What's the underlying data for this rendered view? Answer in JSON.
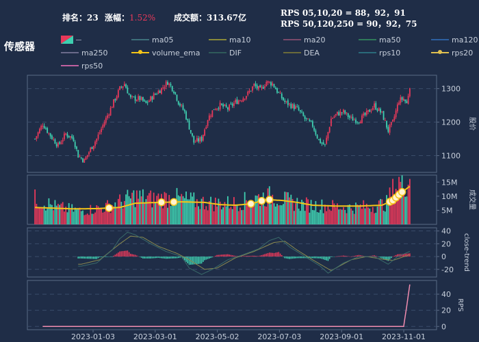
{
  "header": {
    "rank_label": "排名：",
    "rank_value": "23",
    "change_label": "涨幅：",
    "change_value": "1.52%",
    "amount_label": "成交额：",
    "amount_value": "313.67亿",
    "rps_line1": "RPS 05,10,20 = 88，92，91",
    "rps_line2": "RPS 50,120,250 = 90，92，75"
  },
  "title": "传感器",
  "legend": [
    {
      "name": "ma05",
      "color": "#3e6f7a"
    },
    {
      "name": "ma10",
      "color": "#8a8a3a"
    },
    {
      "name": "ma20",
      "color": "#7a4a6a"
    },
    {
      "name": "ma50",
      "color": "#2f7a5a"
    },
    {
      "name": "ma120",
      "color": "#2d5fa0"
    },
    {
      "name": "ma250",
      "color": "#6a6a8a"
    },
    {
      "name": "volume_ema",
      "color": "#f5c518"
    },
    {
      "name": "DIF",
      "color": "#2f5a5a"
    },
    {
      "name": "DEA",
      "color": "#6a6a3a"
    },
    {
      "name": "rps10",
      "color": "#2a6a7a"
    },
    {
      "name": "rps20",
      "color": "#e0c050"
    },
    {
      "name": "rps50",
      "color": "#c060a0"
    }
  ],
  "colors": {
    "up": "#e8395a",
    "down": "#3fcfb0",
    "ema": "#f5c518",
    "rps": "#f28db0",
    "grid": "#3a4c6a",
    "panel_border": "#5a6a84"
  },
  "chart_data": {
    "type": "candlestick",
    "x_tick_labels": [
      "2023-01-03",
      "2023-03-01",
      "2023-05-02",
      "2023-07-03",
      "2023-09-01",
      "2023-11-01"
    ],
    "price": {
      "ylabel": "股价",
      "yticks": [
        1100,
        1200,
        1300
      ],
      "ylim": [
        1050,
        1340
      ],
      "keypoints": [
        [
          0,
          1150
        ],
        [
          5,
          1195
        ],
        [
          10,
          1160
        ],
        [
          15,
          1130
        ],
        [
          20,
          1165
        ],
        [
          25,
          1150
        ],
        [
          28,
          1100
        ],
        [
          32,
          1085
        ],
        [
          36,
          1120
        ],
        [
          40,
          1150
        ],
        [
          45,
          1200
        ],
        [
          50,
          1250
        ],
        [
          55,
          1300
        ],
        [
          58,
          1315
        ],
        [
          62,
          1270
        ],
        [
          68,
          1270
        ],
        [
          72,
          1255
        ],
        [
          77,
          1280
        ],
        [
          82,
          1300
        ],
        [
          86,
          1320
        ],
        [
          90,
          1295
        ],
        [
          93,
          1260
        ],
        [
          97,
          1230
        ],
        [
          100,
          1185
        ],
        [
          103,
          1140
        ],
        [
          108,
          1150
        ],
        [
          112,
          1210
        ],
        [
          116,
          1240
        ],
        [
          120,
          1250
        ],
        [
          125,
          1240
        ],
        [
          130,
          1260
        ],
        [
          134,
          1270
        ],
        [
          138,
          1285
        ],
        [
          142,
          1310
        ],
        [
          146,
          1295
        ],
        [
          150,
          1320
        ],
        [
          154,
          1315
        ],
        [
          158,
          1285
        ],
        [
          162,
          1260
        ],
        [
          166,
          1250
        ],
        [
          170,
          1240
        ],
        [
          175,
          1210
        ],
        [
          180,
          1190
        ],
        [
          184,
          1145
        ],
        [
          188,
          1130
        ],
        [
          192,
          1210
        ],
        [
          196,
          1225
        ],
        [
          200,
          1230
        ],
        [
          205,
          1210
        ],
        [
          210,
          1205
        ],
        [
          215,
          1225
        ],
        [
          220,
          1250
        ],
        [
          225,
          1225
        ],
        [
          229,
          1175
        ],
        [
          232,
          1200
        ],
        [
          236,
          1265
        ],
        [
          239,
          1270
        ],
        [
          241,
          1255
        ],
        [
          243,
          1310
        ]
      ]
    },
    "volume": {
      "ylabel": "成交量",
      "yticks": [
        "5M",
        "10M",
        "15M"
      ],
      "ylim_M": [
        0,
        17.5
      ],
      "ema_keypoints": [
        [
          0,
          6
        ],
        [
          10,
          5.8
        ],
        [
          25,
          5.5
        ],
        [
          40,
          5.6
        ],
        [
          55,
          6
        ],
        [
          65,
          7.5
        ],
        [
          80,
          7.8
        ],
        [
          95,
          8
        ],
        [
          110,
          7.8
        ],
        [
          120,
          7
        ],
        [
          130,
          6.8
        ],
        [
          140,
          7.3
        ],
        [
          150,
          8.8
        ],
        [
          160,
          8.5
        ],
        [
          170,
          7.8
        ],
        [
          180,
          6.8
        ],
        [
          195,
          6.5
        ],
        [
          210,
          6.5
        ],
        [
          225,
          6.8
        ],
        [
          232,
          8.5
        ],
        [
          238,
          11.5
        ],
        [
          243,
          13.5
        ]
      ],
      "vol_keypoints": [
        [
          0,
          9
        ],
        [
          15,
          6
        ],
        [
          30,
          4.8
        ],
        [
          45,
          6
        ],
        [
          58,
          8.5
        ],
        [
          65,
          10
        ],
        [
          75,
          9
        ],
        [
          90,
          9.5
        ],
        [
          105,
          8
        ],
        [
          115,
          7.5
        ],
        [
          130,
          7.5
        ],
        [
          145,
          9.5
        ],
        [
          155,
          10
        ],
        [
          165,
          8
        ],
        [
          175,
          7
        ],
        [
          190,
          6.5
        ],
        [
          205,
          6
        ],
        [
          220,
          6.5
        ],
        [
          228,
          7.5
        ],
        [
          232,
          12
        ],
        [
          236,
          15
        ],
        [
          240,
          15
        ],
        [
          243,
          16
        ]
      ],
      "markers": [
        48,
        82,
        90,
        140,
        147,
        152,
        230,
        232,
        234,
        236,
        238
      ]
    },
    "macd": {
      "ylabel": "close-trend",
      "yticks": [
        -20,
        0,
        20,
        40
      ],
      "ylim": [
        -32,
        45
      ],
      "dif_keypoints": [
        [
          30,
          -15
        ],
        [
          40,
          -10
        ],
        [
          50,
          10
        ],
        [
          55,
          28
        ],
        [
          60,
          38
        ],
        [
          65,
          34
        ],
        [
          75,
          20
        ],
        [
          85,
          8
        ],
        [
          95,
          0
        ],
        [
          100,
          -18
        ],
        [
          108,
          -28
        ],
        [
          115,
          -20
        ],
        [
          125,
          -5
        ],
        [
          135,
          3
        ],
        [
          145,
          12
        ],
        [
          152,
          25
        ],
        [
          158,
          30
        ],
        [
          165,
          15
        ],
        [
          175,
          0
        ],
        [
          185,
          -15
        ],
        [
          190,
          -26
        ],
        [
          200,
          -10
        ],
        [
          210,
          0
        ],
        [
          220,
          0
        ],
        [
          229,
          -12
        ],
        [
          235,
          0
        ],
        [
          243,
          8
        ]
      ],
      "dea_keypoints": [
        [
          30,
          -12
        ],
        [
          42,
          -5
        ],
        [
          55,
          20
        ],
        [
          62,
          32
        ],
        [
          70,
          30
        ],
        [
          80,
          16
        ],
        [
          92,
          5
        ],
        [
          100,
          -5
        ],
        [
          110,
          -20
        ],
        [
          118,
          -18
        ],
        [
          130,
          -2
        ],
        [
          142,
          8
        ],
        [
          155,
          22
        ],
        [
          162,
          24
        ],
        [
          170,
          10
        ],
        [
          180,
          -5
        ],
        [
          192,
          -22
        ],
        [
          205,
          -5
        ],
        [
          215,
          0
        ],
        [
          225,
          -4
        ],
        [
          232,
          -6
        ],
        [
          243,
          3
        ]
      ]
    },
    "rps": {
      "ylabel": "RPS",
      "yticks": [
        0,
        20,
        40
      ],
      "ylim": [
        -4,
        57
      ],
      "keypoints": [
        [
          0,
          0
        ],
        [
          239,
          0
        ],
        [
          241,
          25
        ],
        [
          243,
          52
        ]
      ]
    }
  }
}
